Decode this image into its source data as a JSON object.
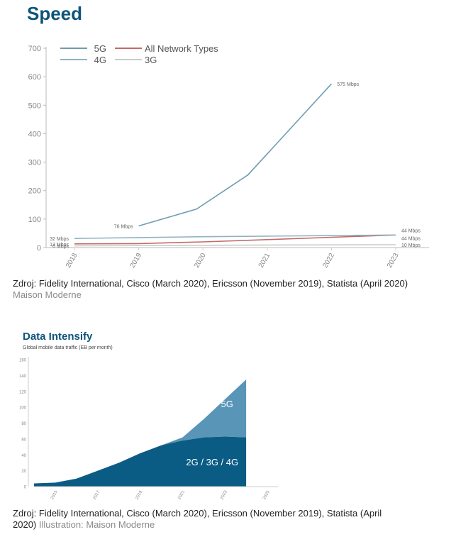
{
  "colors": {
    "title": "#0e5479",
    "g5_line": "#6e9cb2",
    "g4_line": "#8fb3c4",
    "all_line": "#c46a67",
    "g3_line": "#cccccc",
    "axis_text": "#888888",
    "grid": "#dddddd",
    "area_dark": "#0b5c84",
    "area_light": "#5895b7"
  },
  "chart_data": [
    {
      "type": "line",
      "title": "Speed",
      "x": [
        "2018",
        "2019",
        "2020",
        "2021",
        "2022",
        "2023"
      ],
      "ylim": [
        0,
        700
      ],
      "yticks": [
        "0",
        "100",
        "200",
        "300",
        "400",
        "500",
        "600",
        "700"
      ],
      "legend": {
        "placement": "top-left",
        "items": [
          {
            "name": "5G",
            "key": "g5_line"
          },
          {
            "name": "All Network Types",
            "key": "all_line"
          },
          {
            "name": "4G",
            "key": "g4_line"
          },
          {
            "name": "3G",
            "key": "g3_line"
          }
        ]
      },
      "series": [
        {
          "name": "5G",
          "x": [
            2019,
            2019.9,
            2020.7,
            2022
          ],
          "values": [
            76,
            135,
            255,
            575
          ],
          "color_key": "g5_line"
        },
        {
          "name": "4G",
          "x": [
            2018,
            2019,
            2020,
            2021,
            2022,
            2023
          ],
          "values": [
            32,
            35,
            38,
            40,
            42,
            44
          ],
          "color_key": "g4_line"
        },
        {
          "name": "All Network Types",
          "x": [
            2018,
            2019,
            2020,
            2021,
            2022,
            2023
          ],
          "values": [
            13,
            14,
            20,
            28,
            36,
            44
          ],
          "color_key": "all_line"
        },
        {
          "name": "3G",
          "x": [
            2018,
            2019,
            2020,
            2021,
            2022,
            2023
          ],
          "values": [
            6,
            7,
            8,
            9,
            9.5,
            10
          ],
          "color_key": "g3_line"
        }
      ],
      "annotations": [
        {
          "text": "32 Mbps",
          "x": 2018,
          "y": 32,
          "side": "left"
        },
        {
          "text": "13 Mbps",
          "x": 2018,
          "y": 13,
          "side": "left"
        },
        {
          "text": "6 Mbps",
          "x": 2018,
          "y": 6,
          "side": "left"
        },
        {
          "text": "76 Mbps",
          "x": 2019,
          "y": 76,
          "side": "left"
        },
        {
          "text": "575 Mbps",
          "x": 2022,
          "y": 575,
          "side": "right"
        },
        {
          "text": "44 Mbps",
          "x": 2023,
          "y": 44,
          "side": "right",
          "dy": -7
        },
        {
          "text": "44 Mbps",
          "x": 2023,
          "y": 44,
          "side": "right",
          "dy": 4
        },
        {
          "text": "10 Mbps",
          "x": 2023,
          "y": 10,
          "side": "right"
        }
      ]
    },
    {
      "type": "area",
      "title": "Data Intensify",
      "subtitle": "Global mobile data traffic (EB per month)",
      "x": [
        2014,
        2015,
        2016,
        2017,
        2018,
        2019,
        2020,
        2021,
        2022,
        2023,
        2024
      ],
      "xticks": [
        "2015",
        "2017",
        "2019",
        "2021",
        "2023",
        "2025"
      ],
      "xtick_values": [
        2015,
        2017,
        2019,
        2021,
        2023,
        2025
      ],
      "xlim": [
        2014,
        2025.5
      ],
      "ylim": [
        0,
        160
      ],
      "yticks": [
        "0",
        "20",
        "40",
        "60",
        "80",
        "100",
        "120",
        "140",
        "160"
      ],
      "series": [
        {
          "name": "2G / 3G / 4G",
          "values": [
            4,
            5,
            10,
            20,
            30,
            42,
            52,
            58,
            62,
            63,
            62
          ],
          "color_key": "area_dark"
        },
        {
          "name": "5G",
          "values": [
            4,
            5,
            10,
            20,
            30,
            42,
            52,
            62,
            85,
            110,
            135
          ],
          "color_key": "area_light"
        }
      ]
    }
  ],
  "captions": [
    {
      "text": "Zdroj: Fidelity International, Cisco (March 2020), Ericsson (November 2019), Statista (April 2020) ",
      "credit": "Maison Moderne"
    },
    {
      "text": "Zdroj:  Fidelity International, Cisco (March 2020), Ericsson (November 2019), Statista (April 2020) ",
      "credit": "Illustration: Maison Moderne"
    }
  ]
}
